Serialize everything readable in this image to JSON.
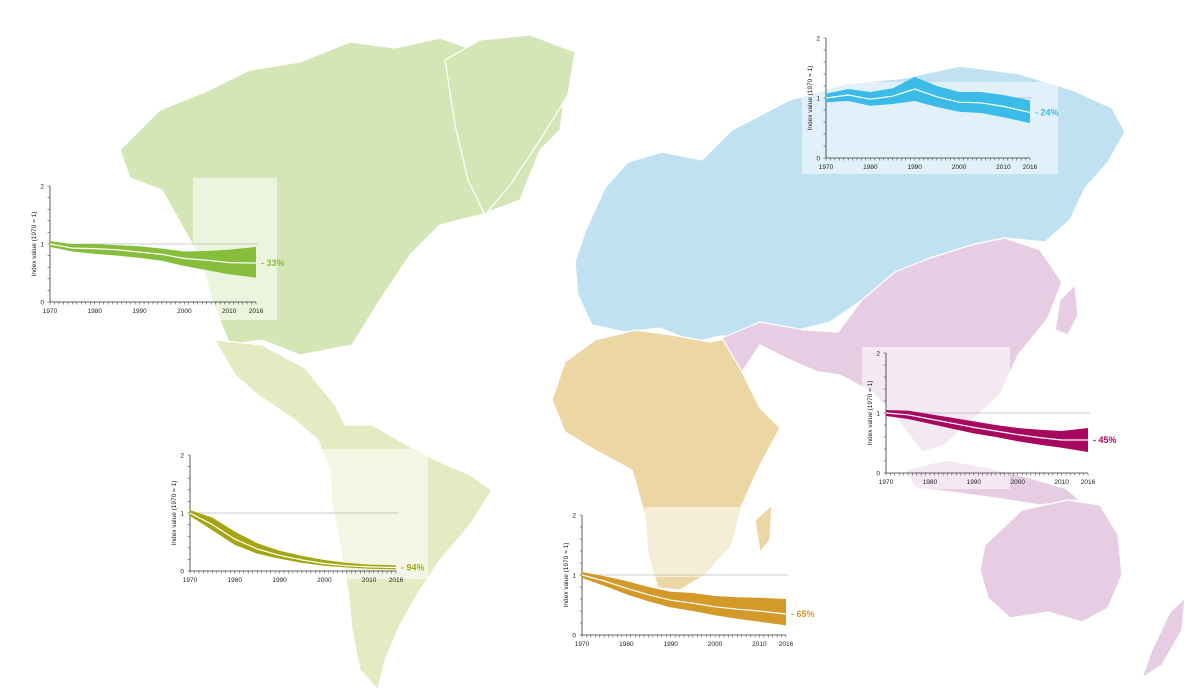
{
  "map": {
    "colors": {
      "north_america": "#d4e6b5",
      "latin_america": "#e4ebc3",
      "africa": "#ecd7a4",
      "europe_central_asia": "#bfe1f2",
      "asia_pacific": "#e6cde3"
    }
  },
  "chart_data": [
    {
      "type": "area",
      "region": "north_america",
      "ylabel": "Index value (1970 = 1)",
      "change_label": "- 33%",
      "color": "#86bd3a",
      "x": [
        1970,
        1975,
        1980,
        1985,
        1990,
        1995,
        2000,
        2005,
        2010,
        2016
      ],
      "y": [
        1.0,
        0.93,
        0.92,
        0.9,
        0.86,
        0.82,
        0.75,
        0.72,
        0.68,
        0.67
      ],
      "y_low": [
        0.95,
        0.87,
        0.83,
        0.8,
        0.76,
        0.71,
        0.62,
        0.55,
        0.48,
        0.42
      ],
      "y_high": [
        1.05,
        1.0,
        1.0,
        0.98,
        0.96,
        0.92,
        0.87,
        0.88,
        0.9,
        0.95
      ],
      "ylim": [
        0,
        2
      ],
      "xticks": [
        1970,
        1980,
        1990,
        2000,
        2010,
        2016
      ],
      "yticks": [
        0,
        1,
        2
      ]
    },
    {
      "type": "area",
      "region": "latin_america",
      "ylabel": "Index value (1970 = 1)",
      "change_label": "- 94%",
      "color": "#a3a611",
      "x": [
        1970,
        1975,
        1980,
        1985,
        1990,
        1995,
        2000,
        2005,
        2010,
        2016
      ],
      "y": [
        1.0,
        0.8,
        0.55,
        0.38,
        0.27,
        0.19,
        0.13,
        0.09,
        0.07,
        0.06
      ],
      "y_low": [
        0.95,
        0.7,
        0.45,
        0.3,
        0.21,
        0.14,
        0.09,
        0.06,
        0.04,
        0.03
      ],
      "y_high": [
        1.05,
        0.92,
        0.68,
        0.48,
        0.35,
        0.26,
        0.19,
        0.14,
        0.11,
        0.1
      ],
      "ylim": [
        0,
        2
      ],
      "xticks": [
        1970,
        1980,
        1990,
        2000,
        2010,
        2016
      ],
      "yticks": [
        0,
        1,
        2
      ]
    },
    {
      "type": "area",
      "region": "africa",
      "ylabel": "Index value (1970 = 1)",
      "change_label": "- 65%",
      "color": "#d39a2a",
      "x": [
        1970,
        1975,
        1980,
        1985,
        1990,
        1995,
        2000,
        2005,
        2010,
        2016
      ],
      "y": [
        1.0,
        0.9,
        0.78,
        0.67,
        0.58,
        0.53,
        0.47,
        0.43,
        0.4,
        0.35
      ],
      "y_low": [
        0.95,
        0.82,
        0.68,
        0.56,
        0.46,
        0.4,
        0.33,
        0.27,
        0.22,
        0.16
      ],
      "y_high": [
        1.05,
        0.98,
        0.9,
        0.8,
        0.72,
        0.7,
        0.65,
        0.63,
        0.62,
        0.6
      ],
      "ylim": [
        0,
        2
      ],
      "xticks": [
        1970,
        1980,
        1990,
        2000,
        2010,
        2016
      ],
      "yticks": [
        0,
        1,
        2
      ]
    },
    {
      "type": "area",
      "region": "europe_central_asia",
      "ylabel": "Index value (1970 = 1)",
      "change_label": "- 24%",
      "color": "#3bbbe8",
      "x": [
        1970,
        1975,
        1980,
        1985,
        1990,
        1995,
        2000,
        2005,
        2010,
        2016
      ],
      "y": [
        1.0,
        1.05,
        0.98,
        1.03,
        1.15,
        1.02,
        0.93,
        0.92,
        0.86,
        0.76
      ],
      "y_low": [
        0.93,
        0.95,
        0.87,
        0.9,
        0.95,
        0.85,
        0.77,
        0.75,
        0.68,
        0.58
      ],
      "y_high": [
        1.07,
        1.15,
        1.1,
        1.16,
        1.35,
        1.2,
        1.1,
        1.1,
        1.05,
        0.96
      ],
      "ylim": [
        0,
        2
      ],
      "xticks": [
        1970,
        1980,
        1990,
        2000,
        2010,
        2016
      ],
      "yticks": [
        0,
        1,
        2
      ]
    },
    {
      "type": "area",
      "region": "asia_pacific",
      "ylabel": "Index value (1970 = 1)",
      "change_label": "- 45%",
      "color": "#a8075f",
      "x": [
        1970,
        1975,
        1980,
        1985,
        1990,
        1995,
        2000,
        2005,
        2010,
        2016
      ],
      "y": [
        1.0,
        0.97,
        0.9,
        0.83,
        0.76,
        0.7,
        0.64,
        0.59,
        0.55,
        0.55
      ],
      "y_low": [
        0.95,
        0.9,
        0.82,
        0.74,
        0.66,
        0.6,
        0.53,
        0.47,
        0.42,
        0.35
      ],
      "y_high": [
        1.05,
        1.04,
        0.98,
        0.92,
        0.86,
        0.8,
        0.75,
        0.72,
        0.7,
        0.75
      ],
      "ylim": [
        0,
        2
      ],
      "xticks": [
        1970,
        1980,
        1990,
        2000,
        2010,
        2016
      ],
      "yticks": [
        0,
        1,
        2
      ]
    }
  ]
}
